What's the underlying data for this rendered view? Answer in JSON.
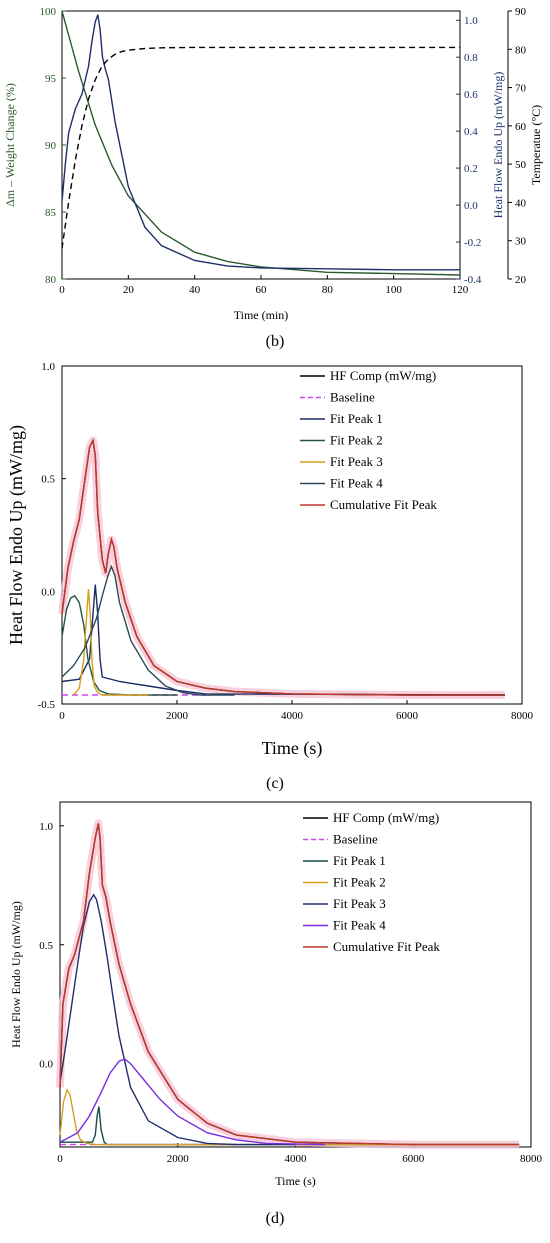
{
  "chart_data": [
    {
      "panel_label": "(b)",
      "type": "line",
      "title": "",
      "xlabel": "Time (min)",
      "xlim": [
        0,
        120
      ],
      "x_ticks": [
        "0",
        "20",
        "40",
        "60",
        "80",
        "100",
        "120"
      ],
      "y_axes": [
        {
          "label": "Δm – Weight Change (%)",
          "color": "#2a5a2a",
          "ylim": [
            80,
            100
          ],
          "ticks": [
            "80",
            "85",
            "90",
            "95",
            "100"
          ]
        },
        {
          "label": "Heat Flow Endo Up (mW/mg)",
          "color": "#1f2f6b",
          "ylim": [
            -0.4,
            1.05
          ],
          "ticks": [
            "-0.4",
            "-0.2",
            "0.0",
            "0.2",
            "0.4",
            "0.6",
            "0.8",
            "1.0"
          ]
        },
        {
          "label": "Temperatue (°C)",
          "color": "#000000",
          "ylim": [
            20,
            90
          ],
          "ticks": [
            "20",
            "30",
            "40",
            "50",
            "60",
            "70",
            "80",
            "90"
          ]
        }
      ],
      "series": [
        {
          "axis": 0,
          "color": "#2a5a2a",
          "dash": "",
          "x": [
            0,
            5,
            10,
            15,
            20,
            30,
            40,
            50,
            60,
            80,
            100,
            120
          ],
          "y": [
            100,
            95.5,
            91.5,
            88.5,
            86.2,
            83.5,
            82.0,
            81.3,
            80.9,
            80.5,
            80.4,
            80.3
          ]
        },
        {
          "axis": 1,
          "color": "#1f2f6b",
          "dash": "",
          "x": [
            0,
            1,
            2,
            4,
            6,
            8,
            9,
            10,
            10.8,
            11.5,
            12.2,
            13,
            14,
            16,
            20,
            25,
            30,
            40,
            50,
            60,
            80,
            100,
            120
          ],
          "y": [
            0.02,
            0.22,
            0.39,
            0.52,
            0.6,
            0.75,
            0.88,
            0.99,
            1.03,
            0.95,
            0.8,
            0.74,
            0.68,
            0.45,
            0.1,
            -0.12,
            -0.22,
            -0.3,
            -0.33,
            -0.34,
            -0.345,
            -0.35,
            -0.35
          ]
        },
        {
          "axis": 2,
          "color": "#000000",
          "dash": "6,4",
          "x": [
            0,
            2,
            4,
            6,
            8,
            10,
            12,
            14,
            16,
            18,
            20,
            25,
            30,
            40,
            120
          ],
          "y": [
            28,
            40,
            51,
            60,
            67,
            72,
            75.5,
            77.5,
            78.7,
            79.4,
            79.8,
            80.2,
            80.4,
            80.5,
            80.5
          ]
        }
      ]
    },
    {
      "panel_label": "(c)",
      "type": "line",
      "title": "",
      "xlabel": "Time (s)",
      "ylabel": "Heat Flow Endo Up (mW/mg)",
      "xlim": [
        0,
        8000
      ],
      "ylim": [
        -0.5,
        1.0
      ],
      "x_ticks": [
        "0",
        "2000",
        "4000",
        "6000",
        "8000"
      ],
      "y_ticks": [
        "-0.5",
        "0.0",
        "0.5",
        "1.0"
      ],
      "legend_position": "top-right",
      "series": [
        {
          "name": "HF Comp (mW/mg)",
          "color": "#000000",
          "dash": "",
          "x": [
            0,
            100,
            200,
            300,
            400,
            480,
            540,
            580,
            620,
            700,
            760,
            800,
            860,
            900,
            960,
            1100,
            1300,
            1600,
            2000,
            2500,
            3000,
            4000,
            6000,
            7700
          ],
          "y": [
            -0.1,
            0.1,
            0.22,
            0.32,
            0.5,
            0.64,
            0.67,
            0.6,
            0.35,
            0.14,
            0.08,
            0.16,
            0.23,
            0.2,
            0.1,
            -0.05,
            -0.2,
            -0.33,
            -0.4,
            -0.43,
            -0.445,
            -0.455,
            -0.46,
            -0.46
          ]
        },
        {
          "name": "Baseline",
          "color": "#cc44ee",
          "dash": "6,4",
          "x": [
            0,
            2500
          ],
          "y": [
            -0.46,
            -0.46
          ]
        },
        {
          "name": "Fit Peak 1",
          "color": "#1a2a6a",
          "dash": "",
          "x": [
            0,
            300,
            480,
            540,
            580,
            620,
            660,
            700,
            1000,
            1500,
            2000,
            2500,
            7700
          ],
          "y": [
            -0.4,
            -0.39,
            -0.3,
            -0.1,
            0.03,
            -0.1,
            -0.3,
            -0.38,
            -0.4,
            -0.42,
            -0.44,
            -0.455,
            -0.46
          ]
        },
        {
          "name": "Fit Peak 2",
          "color": "#225544",
          "dash": "",
          "x": [
            0,
            80,
            150,
            220,
            300,
            380,
            450,
            550,
            650,
            800,
            1200,
            2000
          ],
          "y": [
            -0.2,
            -0.08,
            -0.03,
            -0.02,
            -0.05,
            -0.15,
            -0.3,
            -0.4,
            -0.44,
            -0.455,
            -0.46,
            -0.46
          ]
        },
        {
          "name": "Fit Peak 3",
          "color": "#d4a020",
          "dash": "",
          "x": [
            200,
            300,
            380,
            430,
            460,
            490,
            520,
            560,
            620,
            700,
            900,
            1500
          ],
          "y": [
            -0.46,
            -0.43,
            -0.3,
            -0.1,
            0.01,
            -0.1,
            -0.3,
            -0.42,
            -0.45,
            -0.46,
            -0.46,
            -0.46
          ]
        },
        {
          "name": "Fit Peak 4",
          "color": "#2a4a5a",
          "dash": "",
          "x": [
            0,
            200,
            400,
            600,
            700,
            800,
            860,
            920,
            1000,
            1200,
            1500,
            1800,
            2100,
            2400,
            3000
          ],
          "y": [
            -0.38,
            -0.33,
            -0.25,
            -0.12,
            -0.02,
            0.07,
            0.11,
            0.07,
            -0.05,
            -0.22,
            -0.35,
            -0.42,
            -0.45,
            -0.46,
            -0.46
          ]
        },
        {
          "name": "Cumulative Fit Peak",
          "color": "#c0392b",
          "dash": "",
          "x": [
            0,
            100,
            200,
            300,
            400,
            480,
            540,
            580,
            620,
            700,
            760,
            800,
            860,
            900,
            960,
            1100,
            1300,
            1600,
            2000,
            2500,
            3000,
            4000,
            6000,
            7700
          ],
          "y": [
            -0.1,
            0.1,
            0.22,
            0.32,
            0.5,
            0.64,
            0.67,
            0.6,
            0.35,
            0.14,
            0.08,
            0.16,
            0.23,
            0.2,
            0.1,
            -0.05,
            -0.2,
            -0.33,
            -0.4,
            -0.43,
            -0.445,
            -0.455,
            -0.46,
            -0.46
          ]
        }
      ]
    },
    {
      "panel_label": "(d)",
      "type": "line",
      "title": "",
      "xlabel": "Time (s)",
      "ylabel": "Heat Flow Endo Up (mW/mg)",
      "xlim": [
        0,
        8000
      ],
      "ylim": [
        -0.35,
        1.1
      ],
      "x_ticks": [
        "0",
        "2000",
        "4000",
        "6000",
        "8000"
      ],
      "y_ticks": [
        "0.0",
        "0.5",
        "1.0"
      ],
      "y_tick_values": [
        0,
        0.5,
        1.0
      ],
      "legend_position": "top-right",
      "series": [
        {
          "name": "HF Comp (mW/mg)",
          "color": "#000000",
          "dash": "",
          "x": [
            0,
            50,
            150,
            250,
            400,
            500,
            600,
            650,
            680,
            720,
            780,
            850,
            1000,
            1200,
            1500,
            2000,
            2500,
            3000,
            4000,
            6000,
            7800
          ],
          "y": [
            -0.1,
            0.25,
            0.4,
            0.46,
            0.6,
            0.8,
            0.95,
            1.01,
            0.95,
            0.75,
            0.7,
            0.6,
            0.42,
            0.25,
            0.05,
            -0.15,
            -0.25,
            -0.3,
            -0.33,
            -0.34,
            -0.34
          ]
        },
        {
          "name": "Baseline",
          "color": "#cc44ee",
          "dash": "6,4",
          "x": [
            0,
            3000
          ],
          "y": [
            -0.34,
            -0.34
          ]
        },
        {
          "name": "Fit Peak 1",
          "color": "#1a4a4a",
          "dash": "",
          "x": [
            0,
            550,
            600,
            630,
            660,
            700,
            750,
            800,
            7800
          ],
          "y": [
            -0.33,
            -0.33,
            -0.3,
            -0.22,
            -0.18,
            -0.28,
            -0.33,
            -0.34,
            -0.34
          ]
        },
        {
          "name": "Fit Peak 2",
          "color": "#d4a020",
          "dash": "",
          "x": [
            0,
            60,
            120,
            170,
            220,
            280,
            350,
            450,
            600,
            1000,
            7800
          ],
          "y": [
            -0.3,
            -0.16,
            -0.11,
            -0.13,
            -0.2,
            -0.28,
            -0.32,
            -0.335,
            -0.34,
            -0.34,
            -0.34
          ]
        },
        {
          "name": "Fit Peak 3",
          "color": "#1f2f6b",
          "dash": "",
          "x": [
            0,
            100,
            200,
            300,
            400,
            500,
            570,
            620,
            700,
            800,
            900,
            1000,
            1200,
            1500,
            2000,
            2500,
            3000,
            4000
          ],
          "y": [
            -0.08,
            0.08,
            0.25,
            0.42,
            0.58,
            0.68,
            0.71,
            0.69,
            0.6,
            0.45,
            0.28,
            0.12,
            -0.1,
            -0.24,
            -0.31,
            -0.335,
            -0.34,
            -0.34
          ]
        },
        {
          "name": "Fit Peak 4",
          "color": "#7a2be0",
          "dash": "",
          "x": [
            0,
            300,
            500,
            700,
            850,
            1000,
            1100,
            1200,
            1400,
            1700,
            2000,
            2500,
            3000,
            3500,
            4500
          ],
          "y": [
            -0.33,
            -0.29,
            -0.22,
            -0.12,
            -0.04,
            0.01,
            0.02,
            0.0,
            -0.06,
            -0.15,
            -0.22,
            -0.29,
            -0.32,
            -0.335,
            -0.34
          ]
        },
        {
          "name": "Cumulative Fit Peak",
          "color": "#c0392b",
          "dash": "",
          "x": [
            0,
            50,
            150,
            250,
            400,
            500,
            600,
            650,
            680,
            720,
            780,
            850,
            1000,
            1200,
            1500,
            2000,
            2500,
            3000,
            4000,
            6000,
            7800
          ],
          "y": [
            -0.1,
            0.25,
            0.4,
            0.46,
            0.6,
            0.8,
            0.95,
            1.01,
            0.95,
            0.75,
            0.7,
            0.6,
            0.42,
            0.25,
            0.05,
            -0.15,
            -0.25,
            -0.3,
            -0.33,
            -0.34,
            -0.34
          ]
        }
      ]
    }
  ]
}
